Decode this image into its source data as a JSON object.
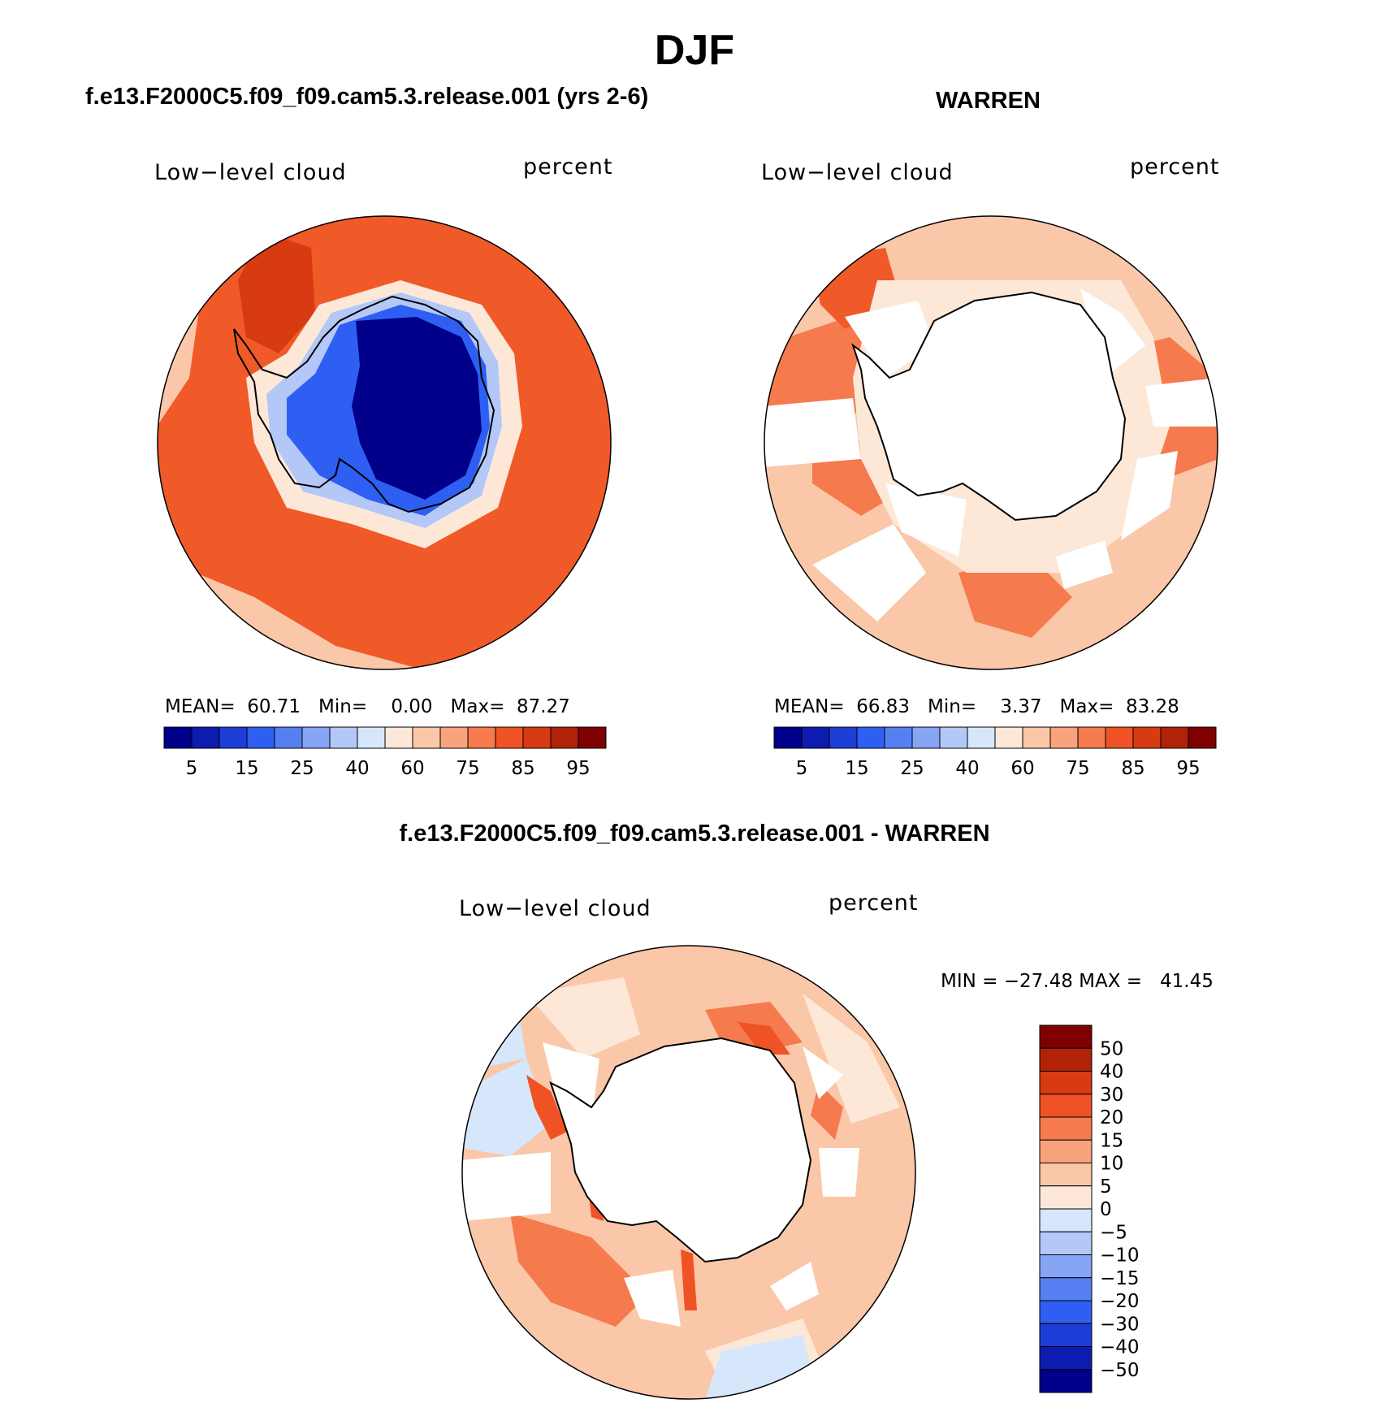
{
  "figure": {
    "title": "DJF",
    "difference_title": "f.e13.F2000C5.f09_f09.cam5.3.release.001 - WARREN"
  },
  "panels": [
    {
      "id": "model",
      "title": "f.e13.F2000C5.f09_f09.cam5.3.release.001 (yrs 2-6)",
      "variable": "Low−level cloud",
      "units": "percent",
      "stats": {
        "mean_label": "MEAN=",
        "mean": "60.71",
        "min_label": "Min=",
        "min": "0.00",
        "max_label": "Max=",
        "max": "87.27"
      }
    },
    {
      "id": "obs",
      "title": "WARREN",
      "variable": "Low−level cloud",
      "units": "percent",
      "stats": {
        "mean_label": "MEAN=",
        "mean": "66.83",
        "min_label": "Min=",
        "min": "3.37",
        "max_label": "Max=",
        "max": "83.28"
      }
    },
    {
      "id": "diff",
      "variable": "Low−level cloud",
      "units": "percent",
      "minmax_text": "MIN = −27.48 MAX =   41.45"
    }
  ],
  "colorbar_main": {
    "colors": [
      "#00008b",
      "#0d1bb0",
      "#1d3ed6",
      "#2e5ff2",
      "#5680f2",
      "#87a5f5",
      "#b3c8f7",
      "#d7e7fb",
      "#fde8d8",
      "#fbc7a9",
      "#f8a37b",
      "#f57a4d",
      "#ef5225",
      "#d83a12",
      "#b12208",
      "#7f0000"
    ],
    "tick_labels": [
      "5",
      "15",
      "25",
      "40",
      "60",
      "75",
      "85",
      "95"
    ]
  },
  "colorbar_diff": {
    "colors": [
      "#00008b",
      "#0d1bb0",
      "#1d3ed6",
      "#2e5ff2",
      "#5680f2",
      "#87a5f5",
      "#b3c8f7",
      "#d7e7fb",
      "#fde8d8",
      "#fbc7a9",
      "#f8a37b",
      "#f57a4d",
      "#ef5225",
      "#d83a12",
      "#b12208",
      "#7f0000"
    ],
    "tick_labels": [
      "50",
      "40",
      "30",
      "20",
      "15",
      "10",
      "5",
      "0",
      "−5",
      "−10",
      "−15",
      "−20",
      "−30",
      "−40",
      "−50"
    ]
  },
  "map_colors": {
    "ocean_dark": "#f05a28",
    "ocean_mid": "#f57a4d",
    "ocean_light": "#fbc7a9",
    "ocean_pale": "#fde8d8",
    "ice_dark": "#00008b",
    "ice_mid": "#2e5ff2",
    "ice_light": "#b3c8f7",
    "missing": "#ffffff",
    "coast": "#000000"
  }
}
